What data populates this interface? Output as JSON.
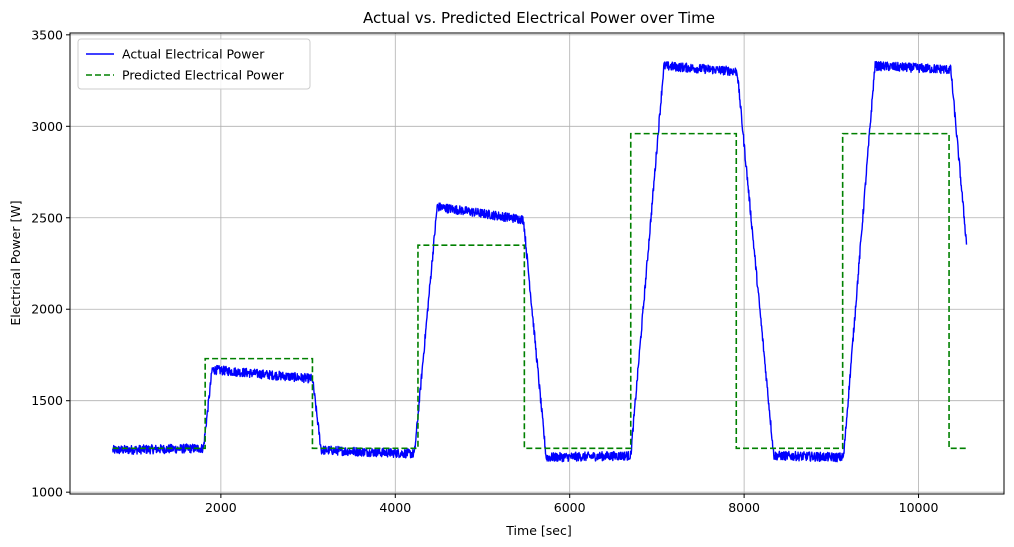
{
  "chart_data": {
    "type": "line",
    "title": "Actual vs. Predicted Electrical Power over Time",
    "xlabel": "Time [sec]",
    "ylabel": "Electrical Power [W]",
    "xlim": [
      270,
      10980
    ],
    "ylim": [
      990,
      3510
    ],
    "xticks": [
      2000,
      4000,
      6000,
      8000,
      10000
    ],
    "xtick_labels": [
      "2000",
      "4000",
      "6000",
      "8000",
      "10000"
    ],
    "yticks": [
      1000,
      1500,
      2000,
      2500,
      3000,
      3500
    ],
    "ytick_labels": [
      "1000",
      "1500",
      "2000",
      "2500",
      "3000",
      "3500"
    ],
    "grid": true,
    "legend_position": "top-left",
    "series": [
      {
        "name": "Actual Electrical Power",
        "color": "#0000ff",
        "style": "solid",
        "noise_amplitude": 25,
        "x": [
          760,
          1800,
          1900,
          3050,
          3150,
          4220,
          4480,
          5470,
          5730,
          6700,
          7080,
          7920,
          8340,
          9140,
          9500,
          10370,
          10550
        ],
        "y": [
          1230,
          1240,
          1670,
          1620,
          1230,
          1210,
          2560,
          2490,
          1190,
          1200,
          3330,
          3300,
          1200,
          1190,
          3330,
          3310,
          2360
        ]
      },
      {
        "name": "Predicted Electrical Power",
        "color": "#008000",
        "style": "dashed",
        "x": [
          760,
          1820,
          1820,
          3050,
          3050,
          4260,
          4260,
          5480,
          5480,
          6700,
          6700,
          7910,
          7910,
          9130,
          9130,
          10350,
          10350,
          10560
        ],
        "y": [
          1240,
          1240,
          1730,
          1730,
          1240,
          1240,
          2350,
          2350,
          1240,
          1240,
          2960,
          2960,
          1240,
          1240,
          2960,
          2960,
          1240,
          1240
        ]
      }
    ]
  }
}
